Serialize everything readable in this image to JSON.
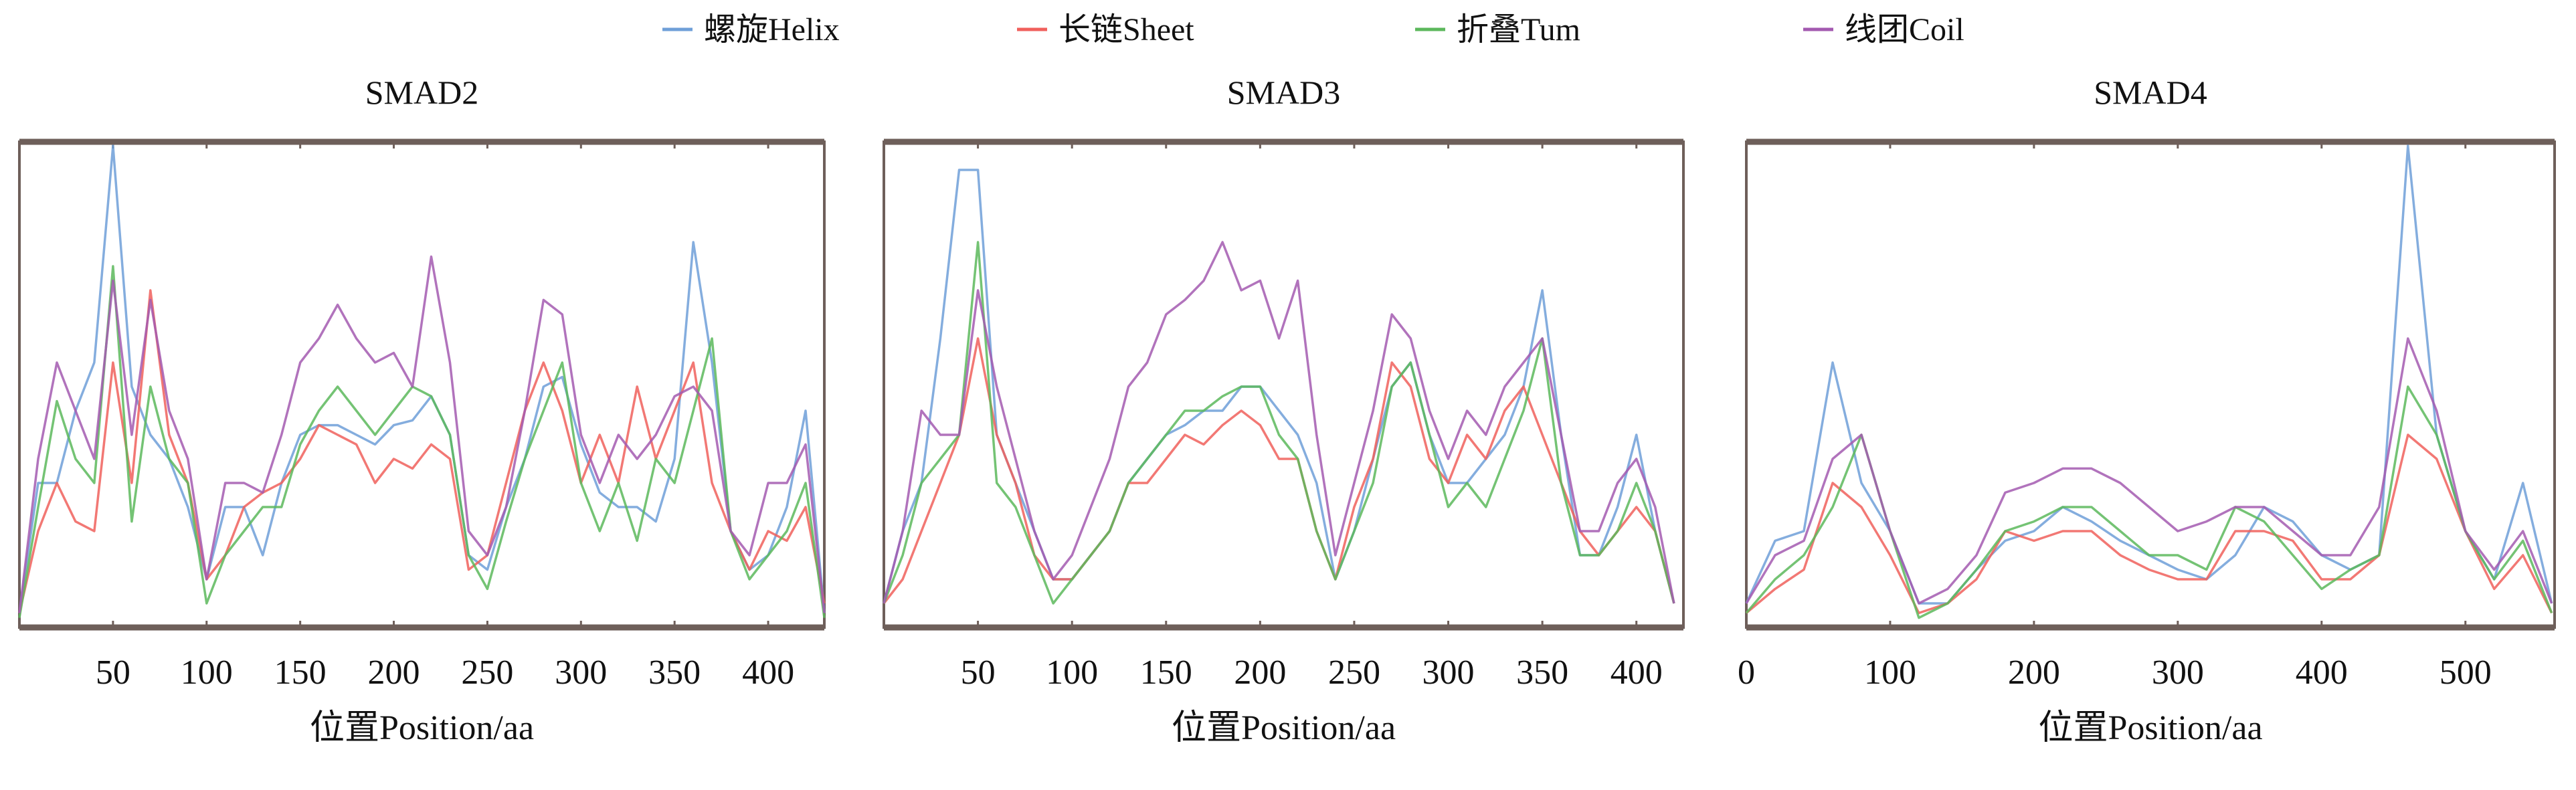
{
  "chart_data": {
    "type": "line",
    "legend": {
      "placement": "top-center",
      "entries": [
        {
          "label": "螺旋Helix",
          "color": "#6f9fd8"
        },
        {
          "label": "长链Sheet",
          "color": "#f0605c"
        },
        {
          "label": "折叠Tum",
          "color": "#5cb85c"
        },
        {
          "label": "线团Coil",
          "color": "#a35ab0"
        }
      ]
    },
    "panels": [
      {
        "title": "SMAD2",
        "xlabel": "位置Position/aa",
        "xlim": [
          0,
          430
        ],
        "ylim": [
          0,
          1
        ],
        "xticks": [
          50,
          100,
          150,
          200,
          250,
          300,
          350,
          400
        ],
        "x": [
          0,
          10,
          20,
          30,
          40,
          50,
          60,
          70,
          80,
          90,
          100,
          110,
          120,
          130,
          140,
          150,
          160,
          170,
          180,
          190,
          200,
          210,
          220,
          230,
          240,
          250,
          260,
          270,
          280,
          290,
          300,
          310,
          320,
          330,
          340,
          350,
          360,
          370,
          380,
          390,
          400,
          410,
          420,
          430
        ],
        "series": [
          {
            "name": "螺旋Helix",
            "values": [
              0.03,
              0.3,
              0.3,
              0.45,
              0.55,
              1.0,
              0.5,
              0.4,
              0.35,
              0.25,
              0.1,
              0.25,
              0.25,
              0.15,
              0.3,
              0.4,
              0.42,
              0.42,
              0.4,
              0.38,
              0.42,
              0.43,
              0.48,
              0.4,
              0.15,
              0.12,
              0.25,
              0.35,
              0.5,
              0.52,
              0.38,
              0.28,
              0.25,
              0.25,
              0.22,
              0.35,
              0.8,
              0.55,
              0.2,
              0.12,
              0.15,
              0.25,
              0.45,
              0.03
            ]
          },
          {
            "name": "长链Sheet",
            "values": [
              0.03,
              0.2,
              0.3,
              0.22,
              0.2,
              0.55,
              0.3,
              0.7,
              0.4,
              0.3,
              0.1,
              0.15,
              0.25,
              0.28,
              0.3,
              0.35,
              0.42,
              0.4,
              0.38,
              0.3,
              0.35,
              0.33,
              0.38,
              0.35,
              0.12,
              0.15,
              0.3,
              0.45,
              0.55,
              0.45,
              0.3,
              0.4,
              0.3,
              0.5,
              0.35,
              0.45,
              0.55,
              0.3,
              0.2,
              0.12,
              0.2,
              0.18,
              0.25,
              0.05
            ]
          },
          {
            "name": "折叠Tum",
            "values": [
              0.02,
              0.25,
              0.47,
              0.35,
              0.3,
              0.75,
              0.22,
              0.5,
              0.35,
              0.3,
              0.05,
              0.15,
              0.2,
              0.25,
              0.25,
              0.38,
              0.45,
              0.5,
              0.45,
              0.4,
              0.45,
              0.5,
              0.48,
              0.4,
              0.15,
              0.08,
              0.22,
              0.35,
              0.45,
              0.55,
              0.3,
              0.2,
              0.3,
              0.18,
              0.35,
              0.3,
              0.45,
              0.6,
              0.2,
              0.1,
              0.15,
              0.2,
              0.3,
              0.02
            ]
          },
          {
            "name": "线团Coil",
            "values": [
              0.03,
              0.35,
              0.55,
              0.45,
              0.35,
              0.72,
              0.4,
              0.68,
              0.45,
              0.35,
              0.1,
              0.3,
              0.3,
              0.28,
              0.4,
              0.55,
              0.6,
              0.67,
              0.6,
              0.55,
              0.57,
              0.5,
              0.77,
              0.55,
              0.2,
              0.15,
              0.25,
              0.45,
              0.68,
              0.65,
              0.4,
              0.3,
              0.4,
              0.35,
              0.4,
              0.48,
              0.5,
              0.45,
              0.2,
              0.15,
              0.3,
              0.3,
              0.38,
              0.03
            ]
          }
        ]
      },
      {
        "title": "SMAD3",
        "xlabel": "位置Position/aa",
        "xlim": [
          0,
          425
        ],
        "ylim": [
          0,
          1
        ],
        "xticks": [
          50,
          100,
          150,
          200,
          250,
          300,
          350,
          400
        ],
        "x": [
          0,
          10,
          20,
          30,
          40,
          50,
          60,
          70,
          80,
          90,
          100,
          110,
          120,
          130,
          140,
          150,
          160,
          170,
          180,
          190,
          200,
          210,
          220,
          230,
          240,
          250,
          260,
          270,
          280,
          290,
          300,
          310,
          320,
          330,
          340,
          350,
          360,
          370,
          380,
          390,
          400,
          410,
          420
        ],
        "series": [
          {
            "name": "螺旋Helix",
            "values": [
              0.05,
              0.2,
              0.3,
              0.6,
              0.95,
              0.95,
              0.4,
              0.3,
              0.2,
              0.1,
              0.1,
              0.15,
              0.2,
              0.3,
              0.35,
              0.4,
              0.42,
              0.45,
              0.45,
              0.5,
              0.5,
              0.45,
              0.4,
              0.3,
              0.1,
              0.2,
              0.35,
              0.5,
              0.55,
              0.4,
              0.3,
              0.3,
              0.35,
              0.4,
              0.5,
              0.7,
              0.4,
              0.15,
              0.15,
              0.25,
              0.4,
              0.2,
              0.05
            ]
          },
          {
            "name": "长链Sheet",
            "values": [
              0.05,
              0.1,
              0.2,
              0.3,
              0.4,
              0.6,
              0.4,
              0.3,
              0.15,
              0.1,
              0.1,
              0.15,
              0.2,
              0.3,
              0.3,
              0.35,
              0.4,
              0.38,
              0.42,
              0.45,
              0.42,
              0.35,
              0.35,
              0.2,
              0.1,
              0.25,
              0.35,
              0.55,
              0.5,
              0.35,
              0.3,
              0.4,
              0.35,
              0.45,
              0.5,
              0.4,
              0.3,
              0.2,
              0.15,
              0.2,
              0.25,
              0.2,
              0.05
            ]
          },
          {
            "name": "折叠Tum",
            "values": [
              0.05,
              0.15,
              0.3,
              0.35,
              0.4,
              0.8,
              0.3,
              0.25,
              0.15,
              0.05,
              0.1,
              0.15,
              0.2,
              0.3,
              0.35,
              0.4,
              0.45,
              0.45,
              0.48,
              0.5,
              0.5,
              0.4,
              0.35,
              0.2,
              0.1,
              0.2,
              0.3,
              0.5,
              0.55,
              0.4,
              0.25,
              0.3,
              0.25,
              0.35,
              0.45,
              0.6,
              0.3,
              0.15,
              0.15,
              0.2,
              0.3,
              0.2,
              0.05
            ]
          },
          {
            "name": "线团Coil",
            "values": [
              0.05,
              0.2,
              0.45,
              0.4,
              0.4,
              0.7,
              0.5,
              0.35,
              0.2,
              0.1,
              0.15,
              0.25,
              0.35,
              0.5,
              0.55,
              0.65,
              0.68,
              0.72,
              0.8,
              0.7,
              0.72,
              0.6,
              0.72,
              0.4,
              0.15,
              0.3,
              0.45,
              0.65,
              0.6,
              0.45,
              0.35,
              0.45,
              0.4,
              0.5,
              0.55,
              0.6,
              0.4,
              0.2,
              0.2,
              0.3,
              0.35,
              0.25,
              0.05
            ]
          }
        ]
      },
      {
        "title": "SMAD4",
        "xlabel": "位置Position/aa",
        "xlim": [
          0,
          562
        ],
        "ylim": [
          0,
          1
        ],
        "xticks": [
          0,
          100,
          200,
          300,
          400,
          500
        ],
        "x": [
          0,
          20,
          40,
          60,
          80,
          100,
          120,
          140,
          160,
          180,
          200,
          220,
          240,
          260,
          280,
          300,
          320,
          340,
          360,
          380,
          400,
          420,
          440,
          460,
          480,
          500,
          520,
          540,
          560
        ],
        "series": [
          {
            "name": "螺旋Helix",
            "values": [
              0.05,
              0.18,
              0.2,
              0.55,
              0.3,
              0.2,
              0.05,
              0.05,
              0.12,
              0.18,
              0.2,
              0.25,
              0.22,
              0.18,
              0.15,
              0.12,
              0.1,
              0.15,
              0.25,
              0.22,
              0.15,
              0.12,
              0.15,
              1.0,
              0.4,
              0.2,
              0.1,
              0.3,
              0.05
            ]
          },
          {
            "name": "长链Sheet",
            "values": [
              0.03,
              0.08,
              0.12,
              0.3,
              0.25,
              0.15,
              0.03,
              0.05,
              0.1,
              0.2,
              0.18,
              0.2,
              0.2,
              0.15,
              0.12,
              0.1,
              0.1,
              0.2,
              0.2,
              0.18,
              0.1,
              0.1,
              0.15,
              0.4,
              0.35,
              0.2,
              0.08,
              0.15,
              0.03
            ]
          },
          {
            "name": "折叠Tum",
            "values": [
              0.03,
              0.1,
              0.15,
              0.25,
              0.4,
              0.2,
              0.02,
              0.05,
              0.12,
              0.2,
              0.22,
              0.25,
              0.25,
              0.2,
              0.15,
              0.15,
              0.12,
              0.25,
              0.22,
              0.15,
              0.08,
              0.12,
              0.15,
              0.5,
              0.4,
              0.2,
              0.1,
              0.18,
              0.03
            ]
          },
          {
            "name": "线团Coil",
            "values": [
              0.05,
              0.15,
              0.18,
              0.35,
              0.4,
              0.2,
              0.05,
              0.08,
              0.15,
              0.28,
              0.3,
              0.33,
              0.33,
              0.3,
              0.25,
              0.2,
              0.22,
              0.25,
              0.25,
              0.2,
              0.15,
              0.15,
              0.25,
              0.6,
              0.45,
              0.2,
              0.12,
              0.2,
              0.05
            ]
          }
        ]
      }
    ]
  }
}
